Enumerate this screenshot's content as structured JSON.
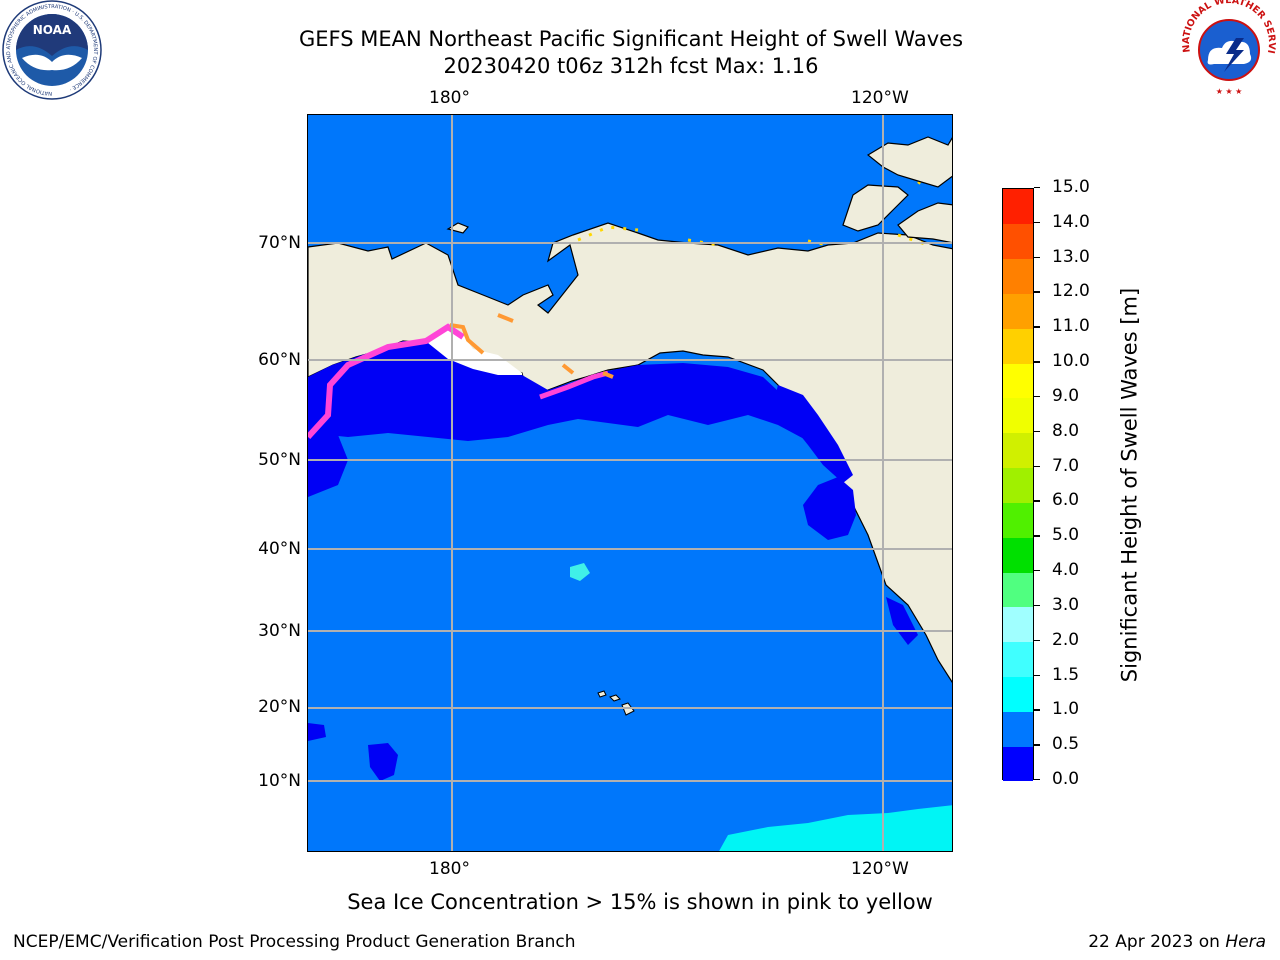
{
  "header": {
    "title_line1": "GEFS MEAN Northeast Pacific Significant Height of Swell Waves",
    "title_line2": "20230420 t06z 312h fcst   Max: 1.16"
  },
  "map": {
    "top_lon_labels": [
      "180°",
      "120°W"
    ],
    "bottom_lon_labels": [
      "180°",
      "120°W"
    ],
    "lat_labels": [
      "70°N",
      "60°N",
      "50°N",
      "40°N",
      "30°N",
      "20°N",
      "10°N"
    ],
    "colors": {
      "land": "#efeddc",
      "sea_ice_free": "#ffffff",
      "swell_0_05": "#0000f5",
      "swell_05_10": "#0077fb",
      "swell_10_15": "#00f5f5",
      "gridline": "#b0b0b0",
      "ice_pink": "#ff45d7",
      "ice_orange": "#ff9933",
      "ice_yellow": "#ffd700"
    }
  },
  "colorbar": {
    "title": "Significant Height of Swell Waves [m]",
    "tick_labels": [
      "0.0",
      "0.5",
      "1.0",
      "1.5",
      "2.0",
      "3.0",
      "4.0",
      "5.0",
      "6.0",
      "7.0",
      "8.0",
      "9.0",
      "10.0",
      "11.0",
      "12.0",
      "13.0",
      "14.0",
      "15.0"
    ],
    "segment_colors": [
      "#0000ff",
      "#0078ff",
      "#00ffff",
      "#40ffff",
      "#a0ffff",
      "#50ff80",
      "#00e000",
      "#50f000",
      "#a0f000",
      "#d0f000",
      "#f0ff00",
      "#ffff00",
      "#ffd000",
      "#ffa000",
      "#ff8000",
      "#ff5000",
      "#ff2000"
    ]
  },
  "caption": "Sea Ice Concentration > 15% is shown in pink to yellow",
  "footer": {
    "left": "NCEP/EMC/Verification Post Processing Product Generation Branch",
    "right_date": "22 Apr 2023 on ",
    "right_host": "Hera"
  },
  "logos": {
    "noaa_text": "NOAA",
    "noaa_ring_text": "NATIONAL OCEANIC AND ATMOSPHERIC ADMINISTRATION · U.S. DEPARTMENT OF COMMERCE ·",
    "nws_ring_text": "NATIONAL WEATHER SERVICE"
  }
}
